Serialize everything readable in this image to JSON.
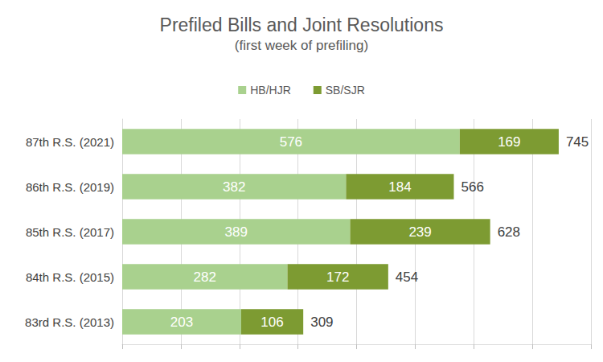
{
  "chart_data": {
    "type": "bar",
    "title": "Prefiled Bills and Joint Resolutions",
    "subtitle": "(first week of prefiling)",
    "orientation": "horizontal",
    "stacked": true,
    "data_labels": true,
    "tick_labels": "y",
    "grid": true,
    "legend": "top",
    "categories": [
      "87th R.S. (2021)",
      "86th R.S. (2019)",
      "85th R.S. (2017)",
      "84th R.S. (2015)",
      "83rd R.S. (2013)"
    ],
    "series": [
      {
        "name": "HB/HJR",
        "color": "#a9d18e",
        "values": [
          576,
          382,
          389,
          282,
          203
        ]
      },
      {
        "name": "SB/SJR",
        "color": "#7d9b32",
        "values": [
          169,
          184,
          239,
          172,
          106
        ]
      }
    ],
    "totals": [
      745,
      566,
      628,
      454,
      309
    ],
    "xlim": [
      0,
      800
    ],
    "xticks": [
      0,
      100,
      200,
      300,
      400,
      500,
      600,
      700,
      800
    ]
  }
}
